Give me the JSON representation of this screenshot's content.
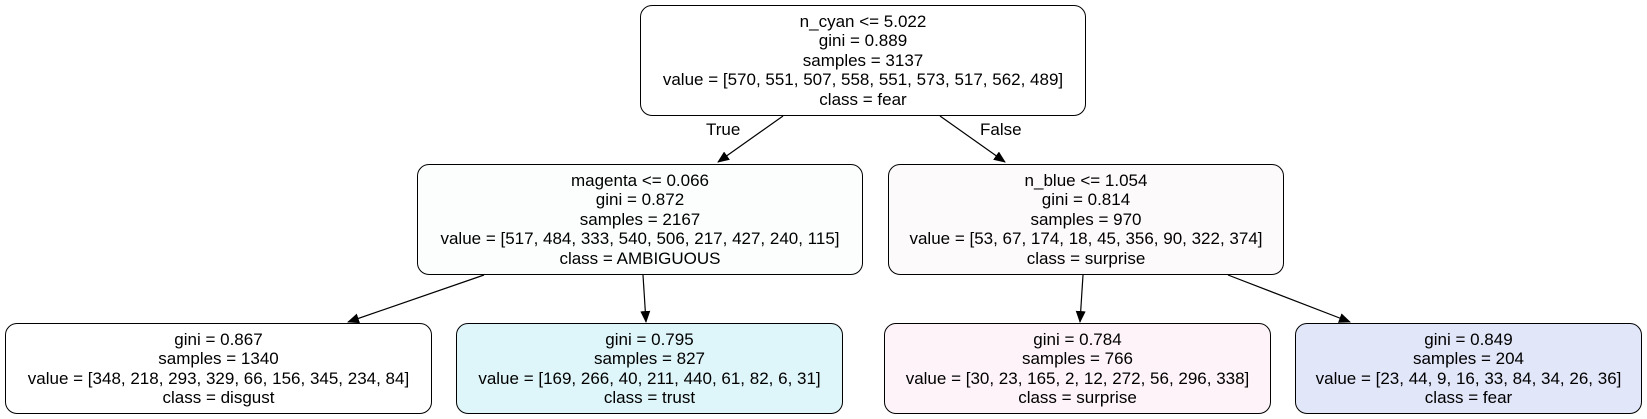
{
  "edge_labels": {
    "true_label": "True",
    "false_label": "False"
  },
  "nodes": {
    "root": {
      "split": "n_cyan <= 5.022",
      "gini": "gini = 0.889",
      "samples": "samples = 3137",
      "value": "value = [570, 551, 507, 558, 551, 573, 517, 562, 489]",
      "class": "class = fear",
      "fill": "#ffffff"
    },
    "left": {
      "split": "magenta <= 0.066",
      "gini": "gini = 0.872",
      "samples": "samples = 2167",
      "value": "value = [517, 484, 333, 540, 506, 217, 427, 240, 115]",
      "class": "class = AMBIGUOUS",
      "fill": "#fcfefe"
    },
    "right": {
      "split": "n_blue <= 1.054",
      "gini": "gini = 0.814",
      "samples": "samples = 970",
      "value": "value = [53, 67, 174, 18, 45, 356, 90, 322, 374]",
      "class": "class = surprise",
      "fill": "#fdfafc"
    },
    "left_left": {
      "gini": "gini = 0.867",
      "samples": "samples = 1340",
      "value": "value = [348, 218, 293, 329, 66, 156, 345, 234, 84]",
      "class": "class = disgust",
      "fill": "#ffffff"
    },
    "left_right": {
      "gini": "gini = 0.795",
      "samples": "samples = 827",
      "value": "value = [169, 266, 40, 211, 440, 61, 82, 6, 31]",
      "class": "class = trust",
      "fill": "#def5f9"
    },
    "right_left": {
      "gini": "gini = 0.784",
      "samples": "samples = 766",
      "value": "value = [30, 23, 165, 2, 12, 272, 56, 296, 338]",
      "class": "class = surprise",
      "fill": "#fdf3f8"
    },
    "right_right": {
      "gini": "gini = 0.849",
      "samples": "samples = 204",
      "value": "value = [23, 44, 9, 16, 33, 84, 34, 26, 36]",
      "class": "class = fear",
      "fill": "#e2e6f9"
    }
  }
}
